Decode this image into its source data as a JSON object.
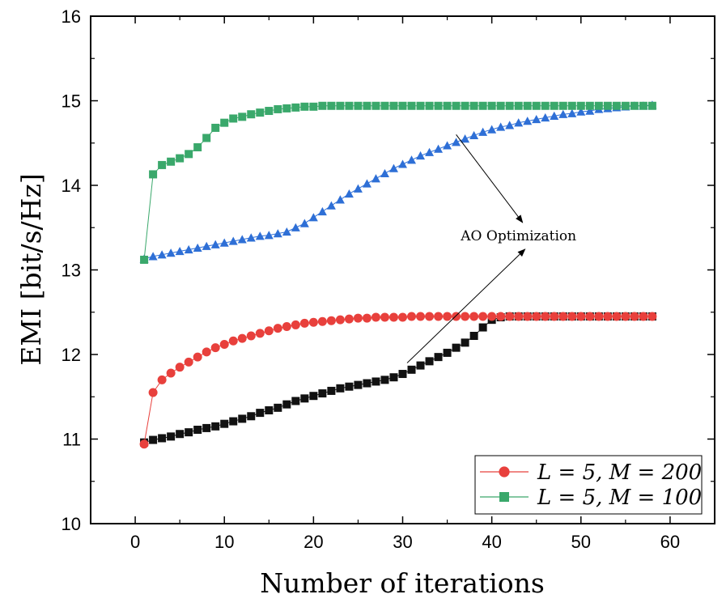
{
  "chart_data": {
    "type": "line",
    "title": "",
    "xlabel": "Number of iterations",
    "ylabel": "EMI [bit/s/Hz]",
    "xlim": [
      -5,
      65
    ],
    "ylim": [
      10,
      16
    ],
    "xticks": [
      0,
      10,
      20,
      30,
      40,
      50,
      60
    ],
    "yticks": [
      10,
      11,
      12,
      13,
      14,
      15,
      16
    ],
    "x_tick_labels": [
      "0",
      "10",
      "20",
      "30",
      "40",
      "50",
      "60"
    ],
    "y_tick_labels": [
      "10",
      "11",
      "12",
      "13",
      "14",
      "15",
      "16"
    ],
    "grid": false,
    "legend_position": "bottom-right",
    "legend": [
      "L = 5, M = 200",
      "L = 5, M = 100"
    ],
    "annotation": {
      "text": "AO Optimization",
      "pointer_sources": [
        [
          36,
          14.6
        ],
        [
          30.5,
          11.9
        ]
      ],
      "label_at": [
        43,
        13.35
      ]
    },
    "series": [
      {
        "name": "L = 5, M = 200",
        "legend": true,
        "color": "#e8403c",
        "marker": "circle",
        "x": [
          1,
          2,
          3,
          4,
          5,
          6,
          7,
          8,
          9,
          10,
          11,
          12,
          13,
          14,
          15,
          16,
          17,
          18,
          19,
          20,
          21,
          22,
          23,
          24,
          25,
          26,
          27,
          28,
          29,
          30,
          31,
          32,
          33,
          34,
          35,
          36,
          37,
          38,
          39,
          40,
          41,
          42,
          43,
          44,
          45,
          46,
          47,
          48,
          49,
          50,
          51,
          52,
          53,
          54,
          55,
          56,
          57,
          58
        ],
        "y": [
          10.94,
          11.55,
          11.7,
          11.78,
          11.85,
          11.91,
          11.97,
          12.03,
          12.08,
          12.12,
          12.16,
          12.19,
          12.22,
          12.25,
          12.28,
          12.31,
          12.33,
          12.35,
          12.37,
          12.38,
          12.39,
          12.4,
          12.41,
          12.42,
          12.43,
          12.43,
          12.44,
          12.44,
          12.44,
          12.44,
          12.45,
          12.45,
          12.45,
          12.45,
          12.45,
          12.45,
          12.45,
          12.45,
          12.45,
          12.45,
          12.45,
          12.45,
          12.45,
          12.45,
          12.45,
          12.45,
          12.45,
          12.45,
          12.45,
          12.45,
          12.45,
          12.45,
          12.45,
          12.45,
          12.45,
          12.45,
          12.45,
          12.45
        ]
      },
      {
        "name": "L = 5, M = 100",
        "legend": true,
        "color": "#3aa86b",
        "marker": "square",
        "x": [
          1,
          2,
          3,
          4,
          5,
          6,
          7,
          8,
          9,
          10,
          11,
          12,
          13,
          14,
          15,
          16,
          17,
          18,
          19,
          20,
          21,
          22,
          23,
          24,
          25,
          26,
          27,
          28,
          29,
          30,
          31,
          32,
          33,
          34,
          35,
          36,
          37,
          38,
          39,
          40,
          41,
          42,
          43,
          44,
          45,
          46,
          47,
          48,
          49,
          50,
          51,
          52,
          53,
          54,
          55,
          56,
          57,
          58
        ],
        "y": [
          13.12,
          14.13,
          14.24,
          14.28,
          14.32,
          14.37,
          14.45,
          14.56,
          14.68,
          14.74,
          14.79,
          14.81,
          14.84,
          14.86,
          14.88,
          14.9,
          14.91,
          14.92,
          14.93,
          14.93,
          14.94,
          14.94,
          14.94,
          14.94,
          14.94,
          14.94,
          14.94,
          14.94,
          14.94,
          14.94,
          14.94,
          14.94,
          14.94,
          14.94,
          14.94,
          14.94,
          14.94,
          14.94,
          14.94,
          14.94,
          14.94,
          14.94,
          14.94,
          14.94,
          14.94,
          14.94,
          14.94,
          14.94,
          14.94,
          14.94,
          14.94,
          14.94,
          14.94,
          14.94,
          14.94,
          14.94,
          14.94,
          14.94
        ]
      },
      {
        "name": "AO Optimization (M = 200)",
        "legend": false,
        "color": "#111111",
        "marker": "square",
        "x": [
          1,
          2,
          3,
          4,
          5,
          6,
          7,
          8,
          9,
          10,
          11,
          12,
          13,
          14,
          15,
          16,
          17,
          18,
          19,
          20,
          21,
          22,
          23,
          24,
          25,
          26,
          27,
          28,
          29,
          30,
          31,
          32,
          33,
          34,
          35,
          36,
          37,
          38,
          39,
          40,
          41,
          42,
          43,
          44,
          45,
          46,
          47,
          48,
          49,
          50,
          51,
          52,
          53,
          54,
          55,
          56,
          57,
          58
        ],
        "y": [
          10.96,
          10.99,
          11.01,
          11.03,
          11.06,
          11.08,
          11.11,
          11.13,
          11.15,
          11.18,
          11.21,
          11.24,
          11.27,
          11.31,
          11.34,
          11.37,
          11.41,
          11.45,
          11.48,
          11.51,
          11.54,
          11.57,
          11.6,
          11.62,
          11.64,
          11.66,
          11.68,
          11.7,
          11.73,
          11.77,
          11.82,
          11.87,
          11.92,
          11.97,
          12.02,
          12.08,
          12.14,
          12.22,
          12.32,
          12.41,
          12.44,
          12.45,
          12.45,
          12.45,
          12.45,
          12.45,
          12.45,
          12.45,
          12.45,
          12.45,
          12.45,
          12.45,
          12.45,
          12.45,
          12.45,
          12.45,
          12.45,
          12.45
        ]
      },
      {
        "name": "AO Optimization (M = 100)",
        "legend": false,
        "color": "#2e6fd6",
        "marker": "triangle",
        "x": [
          1,
          2,
          3,
          4,
          5,
          6,
          7,
          8,
          9,
          10,
          11,
          12,
          13,
          14,
          15,
          16,
          17,
          18,
          19,
          20,
          21,
          22,
          23,
          24,
          25,
          26,
          27,
          28,
          29,
          30,
          31,
          32,
          33,
          34,
          35,
          36,
          37,
          38,
          39,
          40,
          41,
          42,
          43,
          44,
          45,
          46,
          47,
          48,
          49,
          50,
          51,
          52,
          53,
          54,
          55,
          56,
          57,
          58
        ],
        "y": [
          13.13,
          13.16,
          13.18,
          13.2,
          13.22,
          13.24,
          13.26,
          13.28,
          13.3,
          13.32,
          13.34,
          13.36,
          13.38,
          13.4,
          13.41,
          13.43,
          13.45,
          13.5,
          13.55,
          13.62,
          13.69,
          13.76,
          13.83,
          13.9,
          13.96,
          14.02,
          14.08,
          14.14,
          14.2,
          14.25,
          14.3,
          14.35,
          14.39,
          14.43,
          14.47,
          14.51,
          14.55,
          14.59,
          14.63,
          14.66,
          14.69,
          14.71,
          14.74,
          14.76,
          14.78,
          14.8,
          14.82,
          14.84,
          14.85,
          14.87,
          14.88,
          14.9,
          14.91,
          14.92,
          14.93,
          14.94,
          14.94,
          14.95
        ]
      }
    ]
  }
}
